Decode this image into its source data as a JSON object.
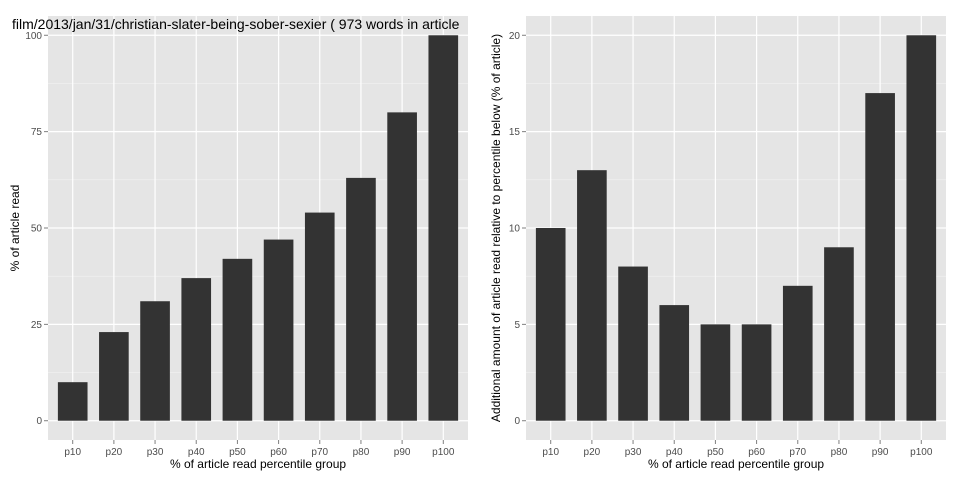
{
  "chart_data": [
    {
      "type": "bar",
      "title": "film/2013/jan/31/christian-slater-being-sober-sexier ( 973 words in article",
      "xlabel": "% of article read percentile group",
      "ylabel": "% of article read",
      "categories": [
        "p10",
        "p20",
        "p30",
        "p40",
        "p50",
        "p60",
        "p70",
        "p80",
        "p90",
        "p100"
      ],
      "values": [
        10,
        23,
        31,
        37,
        42,
        47,
        54,
        63,
        80,
        100
      ],
      "ylim": [
        -5,
        105
      ],
      "yticks": [
        0,
        25,
        50,
        75,
        100
      ],
      "grid": true,
      "colors": {
        "panel": "#e5e5e5",
        "grid": "#ffffff",
        "bar": "#333333"
      }
    },
    {
      "type": "bar",
      "title": "",
      "xlabel": "% of article read percentile group",
      "ylabel": "Additional amount of article read relative to percentile below (% of article)",
      "categories": [
        "p10",
        "p20",
        "p30",
        "p40",
        "p50",
        "p60",
        "p70",
        "p80",
        "p90",
        "p100"
      ],
      "values": [
        10,
        13,
        8,
        6,
        5,
        5,
        7,
        9,
        17,
        20
      ],
      "ylim": [
        -1,
        21
      ],
      "yticks": [
        0,
        5,
        10,
        15,
        20
      ],
      "grid": true,
      "colors": {
        "panel": "#e5e5e5",
        "grid": "#ffffff",
        "bar": "#333333"
      }
    }
  ]
}
